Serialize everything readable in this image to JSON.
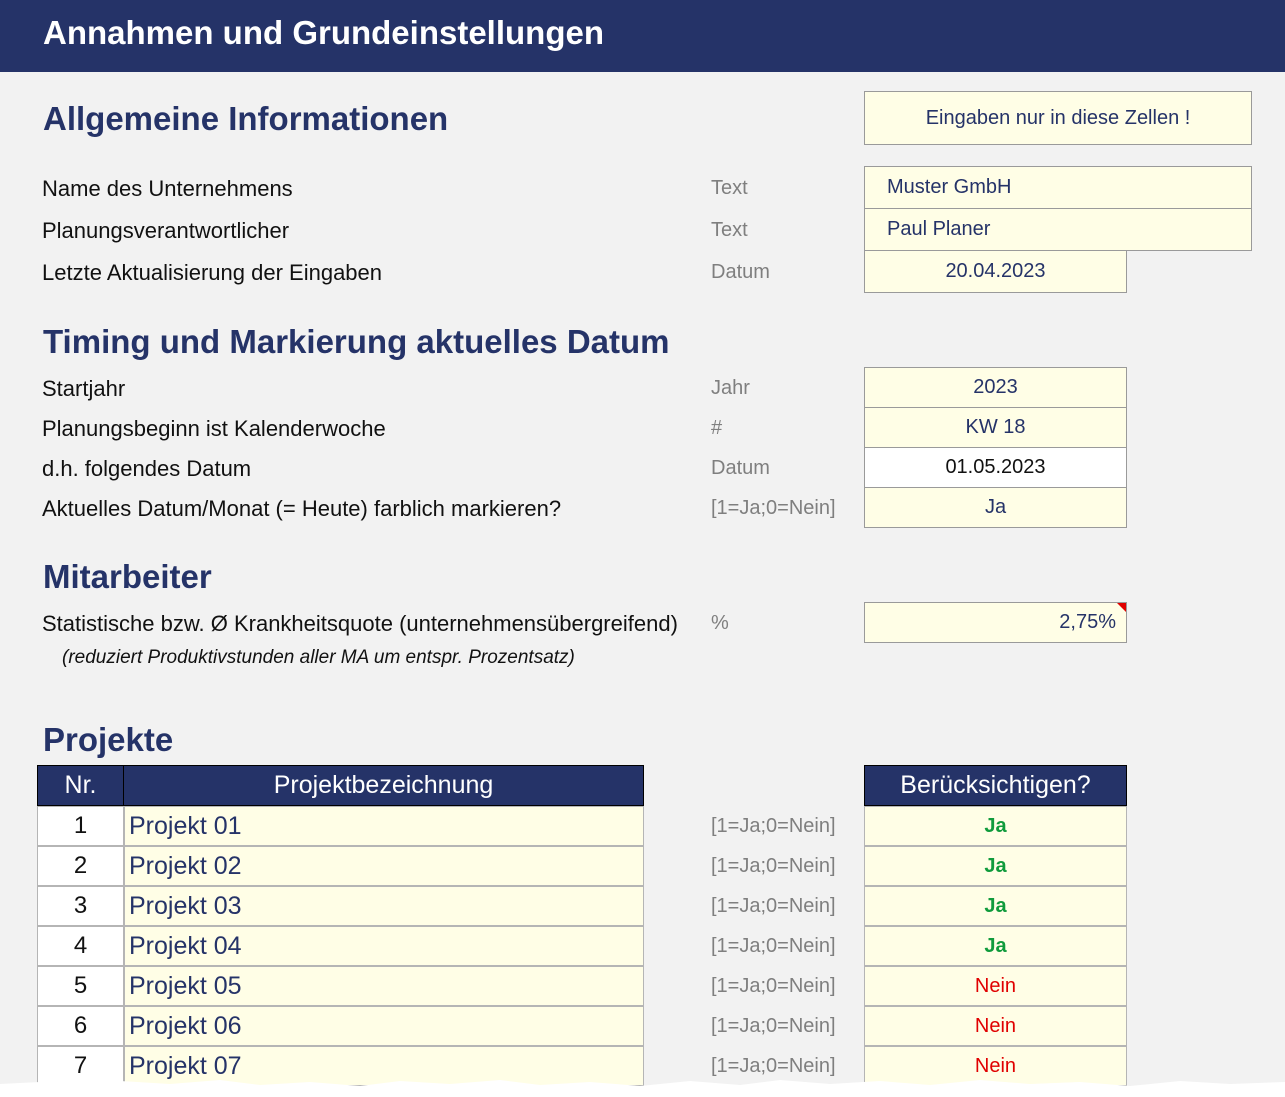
{
  "banner": {
    "title": "Annahmen und Grundeinstellungen"
  },
  "general": {
    "heading": "Allgemeine Informationen",
    "hint": "Eingaben nur in diese Zellen !",
    "rows": [
      {
        "label": "Name des Unternehmens",
        "unit": "Text",
        "value": "Muster GmbH"
      },
      {
        "label": "Planungsverantwortlicher",
        "unit": "Text",
        "value": "Paul Planer"
      },
      {
        "label": "Letzte Aktualisierung der Eingaben",
        "unit": "Datum",
        "value": "20.04.2023"
      }
    ]
  },
  "timing": {
    "heading": "Timing und Markierung aktuelles Datum",
    "rows": [
      {
        "label": "Startjahr",
        "unit": "Jahr",
        "value": "2023"
      },
      {
        "label": "Planungsbeginn ist Kalenderwoche",
        "unit": "#",
        "value": "KW 18"
      },
      {
        "label": "d.h. folgendes Datum",
        "unit": "Datum",
        "value": "01.05.2023"
      },
      {
        "label": "Aktuelles Datum/Monat (= Heute) farblich markieren?",
        "unit": "[1=Ja;0=Nein]",
        "value": "Ja"
      }
    ]
  },
  "staff": {
    "heading": "Mitarbeiter",
    "label": "Statistische bzw. Ø Krankheitsquote (unternehmensübergreifend)",
    "unit": "%",
    "value": "2,75%",
    "note": "(reduziert Produktivstunden aller MA um entspr. Prozentsatz)"
  },
  "projects": {
    "heading": "Projekte",
    "col_nr": "Nr.",
    "col_name": "Projektbezeichnung",
    "col_flag": "Berücksichtigen?",
    "unit": "[1=Ja;0=Nein]",
    "rows": [
      {
        "nr": "1",
        "name": "Projekt 01",
        "flag": "Ja"
      },
      {
        "nr": "2",
        "name": "Projekt 02",
        "flag": "Ja"
      },
      {
        "nr": "3",
        "name": "Projekt 03",
        "flag": "Ja"
      },
      {
        "nr": "4",
        "name": "Projekt 04",
        "flag": "Ja"
      },
      {
        "nr": "5",
        "name": "Projekt 05",
        "flag": "Nein"
      },
      {
        "nr": "6",
        "name": "Projekt 06",
        "flag": "Nein"
      },
      {
        "nr": "7",
        "name": "Projekt 07",
        "flag": "Nein"
      }
    ]
  },
  "colors": {
    "header_navy": "#253368",
    "input_fill": "#fffee6",
    "yes_green": "#109b3c",
    "no_red": "#e00000"
  }
}
